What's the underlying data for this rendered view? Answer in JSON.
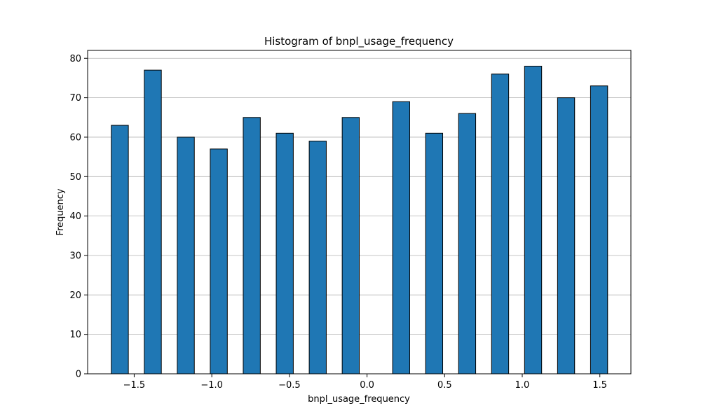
{
  "chart_data": {
    "type": "bar",
    "title": "Histogram of bnpl_usage_frequency",
    "xlabel": "bnpl_usage_frequency",
    "ylabel": "Frequency",
    "xlim": [
      -1.8,
      1.7
    ],
    "ylim": [
      0,
      82
    ],
    "xticks": [
      -1.5,
      -1.0,
      -0.5,
      0.0,
      0.5,
      1.0,
      1.5
    ],
    "xtick_labels": [
      "−1.5",
      "−1.0",
      "−0.5",
      "0.0",
      "0.5",
      "1.0",
      "1.5"
    ],
    "yticks": [
      0,
      10,
      20,
      30,
      40,
      50,
      60,
      70,
      80
    ],
    "ytick_labels": [
      "0",
      "10",
      "20",
      "30",
      "40",
      "50",
      "60",
      "70",
      "80"
    ],
    "grid": "y",
    "bar_color": "#1f77b4",
    "edge_color": "#000000",
    "bins": [
      {
        "x0": -1.6475,
        "x1": -1.5375,
        "value": 63
      },
      {
        "x0": -1.435,
        "x1": -1.325,
        "value": 77
      },
      {
        "x0": -1.2225,
        "x1": -1.1125,
        "value": 60
      },
      {
        "x0": -1.01,
        "x1": -0.9,
        "value": 57
      },
      {
        "x0": -0.7975,
        "x1": -0.6875,
        "value": 65
      },
      {
        "x0": -0.585,
        "x1": -0.475,
        "value": 61
      },
      {
        "x0": -0.3725,
        "x1": -0.2625,
        "value": 59
      },
      {
        "x0": -0.16,
        "x1": -0.05,
        "value": 65
      },
      {
        "x0": 0.0525,
        "x1": 0.1625,
        "value": 0
      },
      {
        "x0": 0.165,
        "x1": 0.275,
        "value": 69
      },
      {
        "x0": 0.3775,
        "x1": 0.4875,
        "value": 61
      },
      {
        "x0": 0.59,
        "x1": 0.7,
        "value": 66
      },
      {
        "x0": 0.8025,
        "x1": 0.9125,
        "value": 76
      },
      {
        "x0": 1.015,
        "x1": 1.125,
        "value": 78
      },
      {
        "x0": 1.2275,
        "x1": 1.3375,
        "value": 70
      },
      {
        "x0": 1.44,
        "x1": 1.55,
        "value": 73
      }
    ]
  }
}
